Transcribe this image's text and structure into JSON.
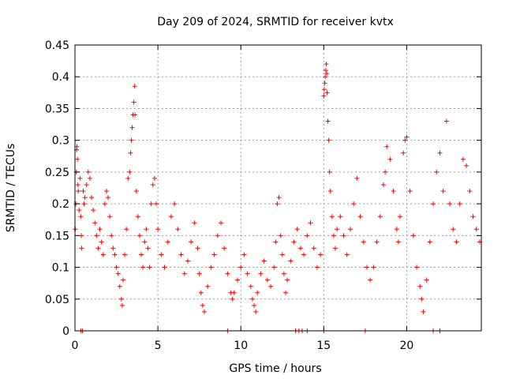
{
  "chart_data": {
    "type": "scatter",
    "title": "Day 209 of 2024, SRMTID for receiver kvtx",
    "xlabel": "GPS time / hours",
    "ylabel": "SRMTID / TECUs",
    "xlim": [
      0,
      24.5
    ],
    "ylim": [
      0,
      0.45
    ],
    "xticks": [
      "0",
      "5",
      "10",
      "15",
      "20"
    ],
    "yticks": [
      "0",
      "0.05",
      "0.1",
      "0.15",
      "0.2",
      "0.25",
      "0.3",
      "0.35",
      "0.4",
      "0.45"
    ],
    "grid": true,
    "marker": "+",
    "series": [
      {
        "name": "SRMTID",
        "color": "#ff0000",
        "points": [
          [
            0.02,
            0.16
          ],
          [
            0.05,
            0.2
          ],
          [
            0.08,
            0.25
          ],
          [
            0.1,
            0.285
          ],
          [
            0.12,
            0.29
          ],
          [
            0.15,
            0.27
          ],
          [
            0.18,
            0.23
          ],
          [
            0.2,
            0.22
          ],
          [
            0.25,
            0.19
          ],
          [
            0.3,
            0.24
          ],
          [
            0.35,
            0.18
          ],
          [
            0.38,
            0.15
          ],
          [
            0.4,
            0.13
          ],
          [
            0.5,
            0.22
          ],
          [
            0.55,
            0.2
          ],
          [
            0.6,
            0.21
          ],
          [
            0.7,
            0.23
          ],
          [
            0.8,
            0.25
          ],
          [
            0.9,
            0.24
          ],
          [
            1.0,
            0.21
          ],
          [
            1.1,
            0.19
          ],
          [
            1.2,
            0.17
          ],
          [
            1.3,
            0.15
          ],
          [
            1.4,
            0.13
          ],
          [
            1.5,
            0.16
          ],
          [
            1.6,
            0.14
          ],
          [
            1.7,
            0.12
          ],
          [
            1.8,
            0.2
          ],
          [
            1.9,
            0.22
          ],
          [
            2.0,
            0.21
          ],
          [
            2.1,
            0.18
          ],
          [
            2.2,
            0.15
          ],
          [
            2.3,
            0.13
          ],
          [
            2.4,
            0.12
          ],
          [
            2.5,
            0.1
          ],
          [
            2.6,
            0.09
          ],
          [
            2.7,
            0.07
          ],
          [
            2.8,
            0.05
          ],
          [
            2.85,
            0.04
          ],
          [
            2.9,
            0.08
          ],
          [
            3.0,
            0.12
          ],
          [
            3.1,
            0.16
          ],
          [
            3.2,
            0.24
          ],
          [
            3.3,
            0.25
          ],
          [
            3.35,
            0.28
          ],
          [
            3.4,
            0.3
          ],
          [
            3.45,
            0.32
          ],
          [
            3.5,
            0.34
          ],
          [
            3.55,
            0.36
          ],
          [
            3.6,
            0.385
          ],
          [
            3.62,
            0.34
          ],
          [
            3.7,
            0.22
          ],
          [
            3.8,
            0.18
          ],
          [
            3.9,
            0.15
          ],
          [
            4.0,
            0.12
          ],
          [
            4.1,
            0.1
          ],
          [
            4.2,
            0.14
          ],
          [
            4.3,
            0.16
          ],
          [
            4.4,
            0.13
          ],
          [
            4.5,
            0.1
          ],
          [
            4.6,
            0.2
          ],
          [
            4.7,
            0.23
          ],
          [
            4.8,
            0.24
          ],
          [
            4.9,
            0.2
          ],
          [
            5.0,
            0.16
          ],
          [
            5.2,
            0.12
          ],
          [
            5.4,
            0.1
          ],
          [
            5.6,
            0.14
          ],
          [
            5.8,
            0.18
          ],
          [
            6.0,
            0.2
          ],
          [
            6.2,
            0.16
          ],
          [
            6.4,
            0.12
          ],
          [
            6.6,
            0.09
          ],
          [
            6.8,
            0.11
          ],
          [
            7.0,
            0.14
          ],
          [
            7.2,
            0.17
          ],
          [
            7.4,
            0.13
          ],
          [
            7.5,
            0.09
          ],
          [
            7.6,
            0.06
          ],
          [
            7.7,
            0.04
          ],
          [
            7.8,
            0.03
          ],
          [
            8.0,
            0.07
          ],
          [
            8.2,
            0.1
          ],
          [
            8.4,
            0.12
          ],
          [
            8.6,
            0.15
          ],
          [
            8.8,
            0.17
          ],
          [
            9.0,
            0.13
          ],
          [
            9.2,
            0.09
          ],
          [
            9.4,
            0.06
          ],
          [
            9.5,
            0.05
          ],
          [
            9.6,
            0.06
          ],
          [
            9.8,
            0.08
          ],
          [
            10.0,
            0.1
          ],
          [
            10.2,
            0.12
          ],
          [
            10.4,
            0.09
          ],
          [
            10.6,
            0.07
          ],
          [
            10.7,
            0.05
          ],
          [
            10.8,
            0.04
          ],
          [
            10.9,
            0.03
          ],
          [
            11.0,
            0.06
          ],
          [
            11.2,
            0.09
          ],
          [
            11.4,
            0.11
          ],
          [
            11.6,
            0.08
          ],
          [
            11.8,
            0.07
          ],
          [
            12.0,
            0.1
          ],
          [
            12.1,
            0.14
          ],
          [
            12.2,
            0.2
          ],
          [
            12.3,
            0.21
          ],
          [
            12.4,
            0.15
          ],
          [
            12.5,
            0.12
          ],
          [
            12.6,
            0.09
          ],
          [
            12.7,
            0.06
          ],
          [
            12.8,
            0.08
          ],
          [
            13.0,
            0.11
          ],
          [
            13.2,
            0.14
          ],
          [
            13.4,
            0.16
          ],
          [
            13.6,
            0.13
          ],
          [
            13.8,
            0.12
          ],
          [
            14.0,
            0.15
          ],
          [
            14.2,
            0.17
          ],
          [
            14.4,
            0.13
          ],
          [
            14.6,
            0.1
          ],
          [
            14.8,
            0.12
          ],
          [
            15.0,
            0.37
          ],
          [
            15.03,
            0.38
          ],
          [
            15.06,
            0.39
          ],
          [
            15.09,
            0.4
          ],
          [
            15.12,
            0.41
          ],
          [
            15.15,
            0.42
          ],
          [
            15.18,
            0.405
          ],
          [
            15.2,
            0.375
          ],
          [
            15.25,
            0.33
          ],
          [
            15.3,
            0.3
          ],
          [
            15.35,
            0.25
          ],
          [
            15.4,
            0.22
          ],
          [
            15.5,
            0.18
          ],
          [
            15.6,
            0.15
          ],
          [
            15.7,
            0.13
          ],
          [
            15.8,
            0.16
          ],
          [
            16.0,
            0.18
          ],
          [
            16.2,
            0.15
          ],
          [
            16.4,
            0.12
          ],
          [
            16.6,
            0.16
          ],
          [
            16.8,
            0.2
          ],
          [
            17.0,
            0.24
          ],
          [
            17.2,
            0.18
          ],
          [
            17.4,
            0.14
          ],
          [
            17.6,
            0.1
          ],
          [
            17.8,
            0.08
          ],
          [
            18.0,
            0.1
          ],
          [
            18.2,
            0.14
          ],
          [
            18.4,
            0.18
          ],
          [
            18.6,
            0.23
          ],
          [
            18.7,
            0.25
          ],
          [
            18.8,
            0.29
          ],
          [
            19.0,
            0.27
          ],
          [
            19.2,
            0.22
          ],
          [
            19.4,
            0.16
          ],
          [
            19.5,
            0.14
          ],
          [
            19.6,
            0.18
          ],
          [
            19.8,
            0.28
          ],
          [
            19.9,
            0.3
          ],
          [
            20.0,
            0.305
          ],
          [
            20.2,
            0.22
          ],
          [
            20.4,
            0.15
          ],
          [
            20.6,
            0.1
          ],
          [
            20.8,
            0.07
          ],
          [
            20.9,
            0.05
          ],
          [
            21.0,
            0.03
          ],
          [
            21.2,
            0.08
          ],
          [
            21.4,
            0.14
          ],
          [
            21.6,
            0.2
          ],
          [
            21.8,
            0.25
          ],
          [
            22.0,
            0.28
          ],
          [
            22.2,
            0.22
          ],
          [
            22.4,
            0.33
          ],
          [
            22.6,
            0.2
          ],
          [
            22.8,
            0.16
          ],
          [
            23.0,
            0.14
          ],
          [
            23.2,
            0.2
          ],
          [
            23.4,
            0.27
          ],
          [
            23.6,
            0.26
          ],
          [
            23.8,
            0.22
          ],
          [
            24.0,
            0.18
          ],
          [
            24.2,
            0.16
          ],
          [
            24.4,
            0.14
          ]
        ]
      }
    ],
    "zero_markers": [
      0.35,
      0.45,
      9.2,
      13.3,
      13.5,
      13.7,
      14.0,
      15.0,
      17.5,
      21.6,
      22.0
    ]
  }
}
